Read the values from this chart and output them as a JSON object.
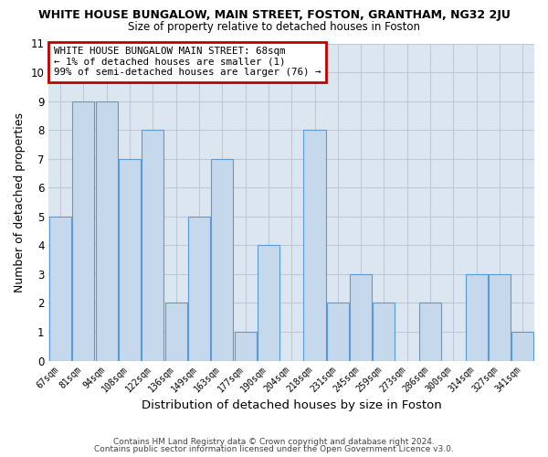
{
  "title": "WHITE HOUSE BUNGALOW, MAIN STREET, FOSTON, GRANTHAM, NG32 2JU",
  "subtitle": "Size of property relative to detached houses in Foston",
  "xlabel": "Distribution of detached houses by size in Foston",
  "ylabel": "Number of detached properties",
  "categories": [
    "67sqm",
    "81sqm",
    "94sqm",
    "108sqm",
    "122sqm",
    "136sqm",
    "149sqm",
    "163sqm",
    "177sqm",
    "190sqm",
    "204sqm",
    "218sqm",
    "231sqm",
    "245sqm",
    "259sqm",
    "273sqm",
    "286sqm",
    "300sqm",
    "314sqm",
    "327sqm",
    "341sqm"
  ],
  "values": [
    5,
    9,
    9,
    7,
    8,
    2,
    5,
    7,
    1,
    4,
    0,
    8,
    2,
    3,
    2,
    0,
    2,
    0,
    3,
    3,
    1
  ],
  "bar_color": "#c5d8ec",
  "bar_edge_color": "#5b9bd5",
  "ylim": [
    0,
    11
  ],
  "yticks": [
    0,
    1,
    2,
    3,
    4,
    5,
    6,
    7,
    8,
    9,
    10,
    11
  ],
  "grid_color": "#c0c8d8",
  "bg_color": "#dce6f1",
  "annotation_line1": "WHITE HOUSE BUNGALOW MAIN STREET: 68sqm",
  "annotation_line2": "← 1% of detached houses are smaller (1)",
  "annotation_line3": "99% of semi-detached houses are larger (76) →",
  "annotation_box_edge_color": "#c00000",
  "footer1": "Contains HM Land Registry data © Crown copyright and database right 2024.",
  "footer2": "Contains public sector information licensed under the Open Government Licence v3.0."
}
